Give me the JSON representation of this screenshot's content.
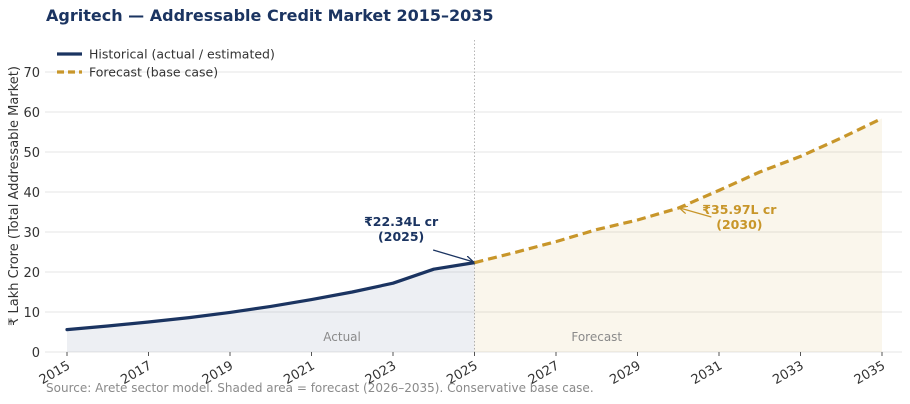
{
  "chart_data": {
    "type": "line",
    "title": "Agritech — Addressable Credit Market 2015–2035",
    "ylabel": "₹ Lakh Crore (Total Addressable Market)",
    "xlabel": "",
    "xlim": [
      2015,
      2035
    ],
    "ylim": [
      0,
      78
    ],
    "yticks": [
      0,
      10,
      20,
      30,
      40,
      50,
      60,
      70
    ],
    "xticks": [
      2015,
      2017,
      2019,
      2021,
      2023,
      2025,
      2027,
      2029,
      2031,
      2033,
      2035
    ],
    "grid": true,
    "legend_position": "top-left",
    "series": [
      {
        "name": "Historical (actual / estimated)",
        "style": "solid",
        "color": "#1b3461",
        "x": [
          2015,
          2016,
          2017,
          2018,
          2019,
          2020,
          2021,
          2022,
          2023,
          2024,
          2025
        ],
        "values": [
          5.6,
          6.5,
          7.5,
          8.6,
          9.9,
          11.4,
          13.1,
          15.0,
          17.2,
          20.7,
          22.34
        ]
      },
      {
        "name": "Forecast (base case)",
        "style": "dashed",
        "color": "#c8962a",
        "x": [
          2025,
          2026,
          2027,
          2028,
          2029,
          2030,
          2031,
          2032,
          2033,
          2034,
          2035
        ],
        "values": [
          22.34,
          24.9,
          27.6,
          30.6,
          33.0,
          35.97,
          40.4,
          45.0,
          48.9,
          53.5,
          58.4
        ]
      }
    ],
    "regions": [
      {
        "label": "Actual",
        "from": 2015,
        "to": 2025,
        "color": "#1b3461"
      },
      {
        "label": "Forecast",
        "from": 2025,
        "to": 2035,
        "color": "#c8962a"
      }
    ],
    "divider_year": 2025,
    "annotations": [
      {
        "text_line1": "₹22.34L cr",
        "text_line2": "(2025)",
        "x": 2025,
        "y": 22.34,
        "text_x": 2023.2,
        "text_y": 31.5,
        "color": "#1b3461"
      },
      {
        "text_line1": "₹35.97L cr",
        "text_line2": "(2030)",
        "x": 2030,
        "y": 35.97,
        "text_x": 2031.5,
        "text_y": 34.5,
        "color": "#c8962a"
      }
    ]
  },
  "footer": {
    "source": "Source: Arete sector model. Shaded area = forecast (2026–2035). Conservative base case."
  }
}
